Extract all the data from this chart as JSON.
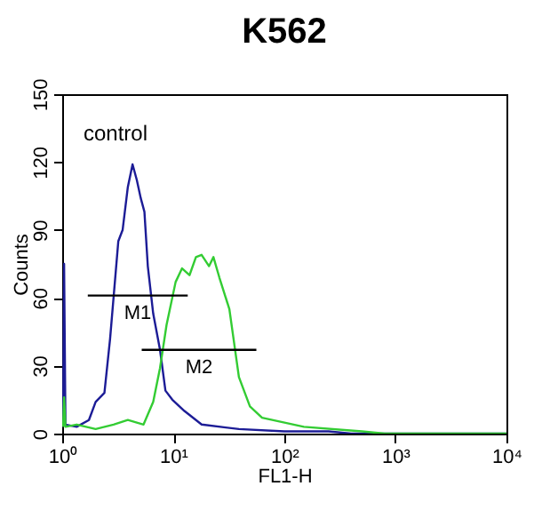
{
  "chart_data": {
    "type": "line",
    "title": "K562",
    "xlabel": "FL1-H",
    "ylabel": "Counts",
    "log": "x",
    "grid": false,
    "xlim": [
      1,
      10000
    ],
    "ylim": [
      0,
      150
    ],
    "xticks": [
      {
        "value": 1,
        "label": "10⁰"
      },
      {
        "value": 10,
        "label": "10¹"
      },
      {
        "value": 100,
        "label": "10²"
      },
      {
        "value": 1000,
        "label": "10³"
      },
      {
        "value": 10000,
        "label": "10⁴"
      }
    ],
    "yticks": [
      0,
      30,
      60,
      90,
      120,
      150
    ],
    "annotations": [
      "control"
    ],
    "series": [
      {
        "color": "#1c1c96",
        "x": [
          1.02,
          1.04,
          1.07,
          1.35,
          1.74,
          2.0,
          2.4,
          2.7,
          3.2,
          3.5,
          3.9,
          4.3,
          4.7,
          5.1,
          5.5,
          5.9,
          6.6,
          7.6,
          8.5,
          9.8,
          12.6,
          18,
          39,
          100,
          250,
          400,
          10000
        ],
        "values": [
          3,
          75,
          4,
          3,
          6,
          14,
          18,
          42,
          85,
          90,
          109,
          119,
          112,
          104,
          98,
          74,
          53,
          37,
          19,
          15,
          10,
          4,
          2,
          1,
          1,
          0,
          0
        ]
      },
      {
        "color": "#33cc33",
        "x": [
          1.02,
          1.04,
          1.07,
          1.35,
          2.0,
          2.9,
          3.9,
          5.4,
          6.6,
          7.6,
          8.7,
          10.5,
          12,
          14,
          16,
          18,
          21,
          23,
          26,
          32,
          39,
          49,
          63,
          150,
          500,
          800,
          10000
        ],
        "values": [
          3,
          16,
          3,
          4,
          2,
          4,
          6,
          4,
          14,
          29,
          48,
          67,
          73,
          70,
          78,
          79,
          74,
          78,
          69,
          55,
          25,
          12,
          7,
          3,
          1,
          0,
          0
        ]
      },
      {
        "name": "M1",
        "color": "#000000",
        "x": [
          1.7,
          13.5
        ],
        "values": [
          61,
          61
        ]
      },
      {
        "name": "M2",
        "color": "#000000",
        "x": [
          5.2,
          56
        ],
        "values": [
          37,
          37
        ]
      }
    ]
  }
}
